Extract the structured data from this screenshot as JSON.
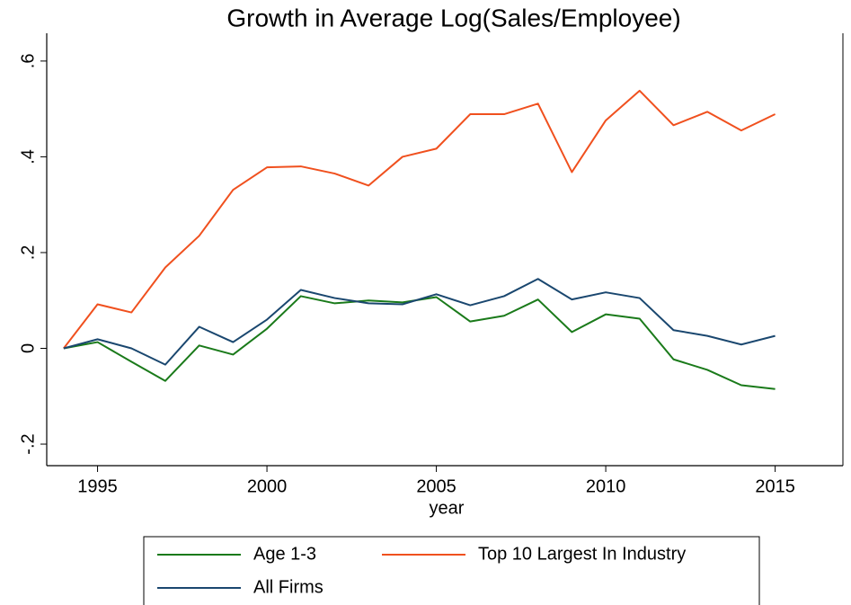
{
  "chart_data": {
    "type": "line",
    "title": "Growth in Average Log(Sales/Employee)",
    "x_label": "year",
    "x": [
      1994,
      1995,
      1996,
      1997,
      1998,
      1999,
      2000,
      2001,
      2002,
      2003,
      2004,
      2005,
      2006,
      2007,
      2008,
      2009,
      2010,
      2011,
      2012,
      2013,
      2014,
      2015
    ],
    "series": [
      {
        "name": "Age 1-3",
        "color": "#1a7a1a",
        "values": [
          0,
          0.013,
          -0.028,
          -0.068,
          0.006,
          -0.013,
          0.041,
          0.109,
          0.094,
          0.1,
          0.096,
          0.107,
          0.056,
          0.068,
          0.102,
          0.034,
          0.071,
          0.062,
          -0.023,
          -0.045,
          -0.077,
          -0.085
        ]
      },
      {
        "name": "Top 10 Largest In Industry",
        "color": "#f0501e",
        "values": [
          0,
          0.092,
          0.075,
          0.169,
          0.235,
          0.331,
          0.378,
          0.38,
          0.365,
          0.34,
          0.4,
          0.417,
          0.489,
          0.489,
          0.511,
          0.368,
          0.476,
          0.538,
          0.466,
          0.494,
          0.455,
          0.489
        ]
      },
      {
        "name": "All Firms",
        "color": "#1a476f",
        "values": [
          0,
          0.019,
          0,
          -0.034,
          0.045,
          0.013,
          0.06,
          0.122,
          0.105,
          0.094,
          0.092,
          0.113,
          0.09,
          0.109,
          0.145,
          0.102,
          0.117,
          0.105,
          0.038,
          0.026,
          0.008,
          0.026
        ]
      }
    ],
    "xlim": [
      1993.5,
      2017
    ],
    "xticks": [
      1995,
      2000,
      2005,
      2010,
      2015
    ],
    "ylim": [
      -0.245,
      0.658
    ],
    "yticks": [
      {
        "value": -0.2,
        "label": "-.2"
      },
      0,
      {
        "value": 0.2,
        "label": ".2"
      },
      {
        "value": 0.4,
        "label": ".4"
      },
      {
        "value": 0.6,
        "label": ".6"
      }
    ],
    "legend_position": "bottom"
  }
}
